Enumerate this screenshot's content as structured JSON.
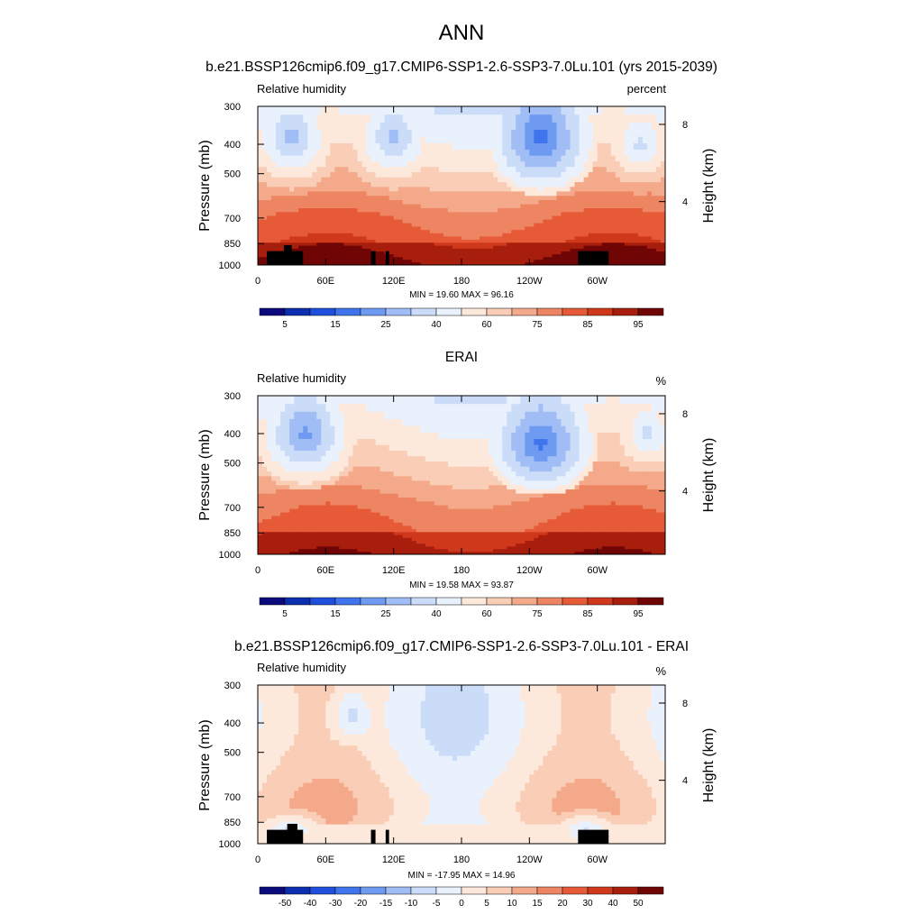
{
  "figure": {
    "title": "ANN",
    "left_axis_label": "Pressure (mb)",
    "right_axis_label": "Height (km)"
  },
  "chart_data": [
    {
      "type": "heatmap",
      "title": "b.e21.BSSP126cmip6.f09_g17.CMIP6-SSP1-2.6-SSP3-7.0Lu.101 (yrs 2015-2039)",
      "left_string": "Relative humidity",
      "right_string": "percent",
      "ylabel": "Pressure (mb)",
      "ylabel_right": "Height (km)",
      "x_ticks": [
        "0",
        "60E",
        "120E",
        "180",
        "120W",
        "60W"
      ],
      "y_ticks": [
        "300",
        "400",
        "500",
        "700",
        "850",
        "1000"
      ],
      "y_ticks_right": [
        "8",
        "4"
      ],
      "ylim": [
        1000,
        300
      ],
      "stats": "MIN =  19.60  MAX =  96.16",
      "min": 19.6,
      "max": 96.16,
      "levels": [
        "5",
        "15",
        "25",
        "40",
        "60",
        "75",
        "85",
        "95"
      ],
      "palette": [
        "#0a0a7c",
        "#0c2fb0",
        "#1f4fdc",
        "#3f74ec",
        "#6f9af2",
        "#a1bdf5",
        "#cadcf8",
        "#e9f1fc",
        "#fde8dc",
        "#f9cdb6",
        "#f4aa8a",
        "#ee8562",
        "#e65a38",
        "#d0381c",
        "#a81e0d",
        "#700505"
      ],
      "features": {
        "blue_cells": [
          {
            "lon": 120,
            "p": 380,
            "lvl": 2
          },
          {
            "lon": 250,
            "p": 380,
            "lvl": 0
          },
          {
            "lon": 338,
            "p": 400,
            "lvl": 3
          },
          {
            "lon": 30,
            "p": 380,
            "lvl": 2
          }
        ],
        "red_layer_max": 1,
        "terrain_blocks": [
          {
            "lon0": 8,
            "lon1": 40,
            "p_top": 900
          },
          {
            "lon0": 23,
            "lon1": 30,
            "p_top": 860
          },
          {
            "lon0": 100,
            "lon1": 104,
            "p_top": 900
          },
          {
            "lon0": 113,
            "lon1": 116,
            "p_top": 900
          },
          {
            "lon0": 283,
            "lon1": 310,
            "p_top": 900
          }
        ]
      }
    },
    {
      "type": "heatmap",
      "title": "ERAI",
      "left_string": "Relative humidity",
      "right_string": "%",
      "ylabel": "Pressure (mb)",
      "ylabel_right": "Height (km)",
      "x_ticks": [
        "0",
        "60E",
        "120E",
        "180",
        "120W",
        "60W"
      ],
      "y_ticks": [
        "300",
        "400",
        "500",
        "700",
        "850",
        "1000"
      ],
      "y_ticks_right": [
        "8",
        "4"
      ],
      "ylim": [
        1000,
        300
      ],
      "stats": "MIN =  19.58  MAX =  93.87",
      "min": 19.58,
      "max": 93.87,
      "levels": [
        "5",
        "15",
        "25",
        "40",
        "60",
        "75",
        "85",
        "95"
      ],
      "palette": [
        "#0a0a7c",
        "#0c2fb0",
        "#1f4fdc",
        "#3f74ec",
        "#6f9af2",
        "#a1bdf5",
        "#cadcf8",
        "#e9f1fc",
        "#fde8dc",
        "#f9cdb6",
        "#f4aa8a",
        "#ee8562",
        "#e65a38",
        "#d0381c",
        "#a81e0d",
        "#700505"
      ],
      "features": {
        "blue_cells": [
          {
            "lon": 250,
            "p": 430,
            "lvl": 0
          },
          {
            "lon": 42,
            "p": 400,
            "lvl": 1
          },
          {
            "lon": 345,
            "p": 400,
            "lvl": 3
          }
        ],
        "red_layer_max": 0.85,
        "terrain_blocks": []
      }
    },
    {
      "type": "heatmap",
      "title": "b.e21.BSSP126cmip6.f09_g17.CMIP6-SSP1-2.6-SSP3-7.0Lu.101 - ERAI",
      "left_string": "Relative humidity",
      "right_string": "%",
      "ylabel": "Pressure (mb)",
      "ylabel_right": "Height (km)",
      "x_ticks": [
        "0",
        "60E",
        "120E",
        "180",
        "120W",
        "60W"
      ],
      "y_ticks": [
        "300",
        "400",
        "500",
        "700",
        "850",
        "1000"
      ],
      "y_ticks_right": [
        "8",
        "4"
      ],
      "ylim": [
        1000,
        300
      ],
      "stats": "MIN = -17.95  MAX =  14.96",
      "min": -17.95,
      "max": 14.96,
      "levels": [
        "-50",
        "-40",
        "-30",
        "-20",
        "-15",
        "-10",
        "-5",
        "0",
        "5",
        "10",
        "15",
        "20",
        "30",
        "40",
        "50"
      ],
      "palette": [
        "#0a0a7c",
        "#0c2fb0",
        "#1f4fdc",
        "#3f74ec",
        "#6f9af2",
        "#a1bdf5",
        "#cadcf8",
        "#e9f1fc",
        "#fde8dc",
        "#f9cdb6",
        "#f4aa8a",
        "#ee8562",
        "#e65a38",
        "#d0381c",
        "#a81e0d",
        "#700505"
      ],
      "features": {
        "blue_cells": [
          {
            "lon": 85,
            "p": 380,
            "lvl": 3
          },
          {
            "lon": 28,
            "p": 900,
            "lvl": 3
          },
          {
            "lon": 290,
            "p": 910,
            "lvl": 3
          }
        ],
        "red_layer_max": 0.3,
        "terrain_blocks": [
          {
            "lon0": 8,
            "lon1": 40,
            "p_top": 900
          },
          {
            "lon0": 26,
            "lon1": 35,
            "p_top": 860
          },
          {
            "lon0": 100,
            "lon1": 104,
            "p_top": 900
          },
          {
            "lon0": 113,
            "lon1": 116,
            "p_top": 900
          },
          {
            "lon0": 283,
            "lon1": 310,
            "p_top": 900
          }
        ]
      }
    }
  ]
}
